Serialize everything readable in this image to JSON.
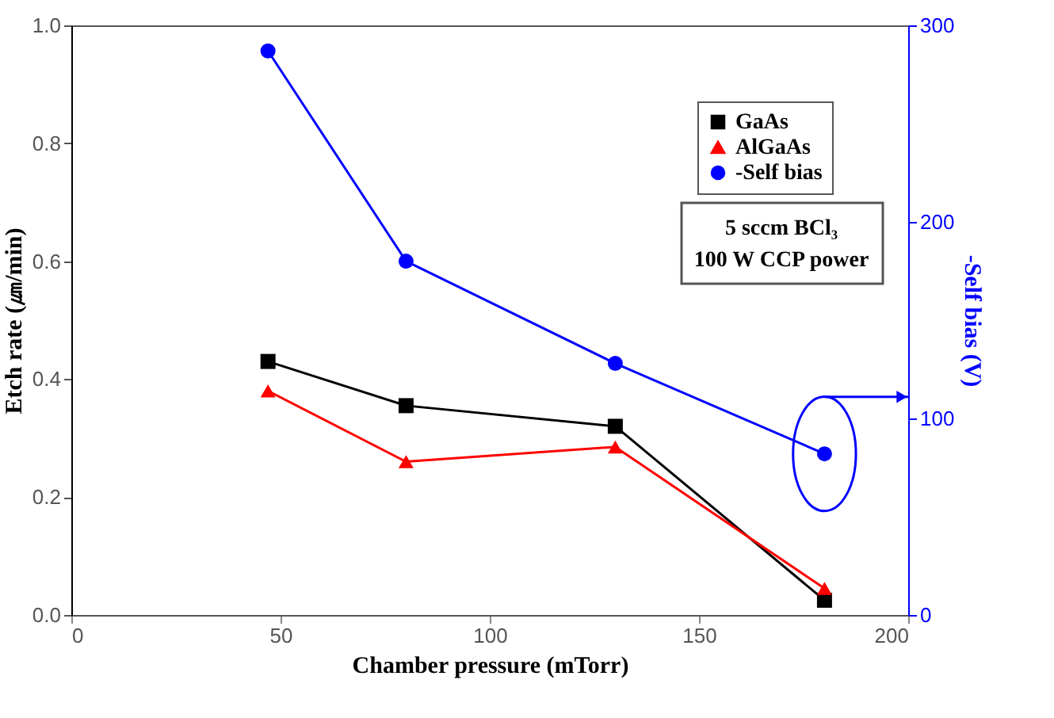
{
  "chart_data": {
    "type": "line",
    "xlabel": "Chamber pressure (mTorr)",
    "ylabel": "Etch rate (㎛/min)",
    "y2label": "-Self bias (V)",
    "x": [
      47,
      80,
      130,
      180
    ],
    "xlim": [
      0,
      200
    ],
    "xticks": [
      0,
      50,
      100,
      150,
      200
    ],
    "ylim": [
      0,
      1.0
    ],
    "yticks": [
      {
        "value": 0,
        "label": "0.0"
      },
      0.2,
      0.4,
      0.6,
      0.8,
      {
        "value": 1,
        "label": "1.0"
      }
    ],
    "y2lim": [
      0,
      300
    ],
    "y2ticks": [
      0,
      100,
      200,
      300
    ],
    "series": [
      {
        "name": "GaAs",
        "color": "#000000",
        "marker": "square",
        "values": [
          0.43,
          0.355,
          0.32,
          0.025
        ]
      },
      {
        "name": "AlGaAs",
        "color": "#ff0000",
        "marker": "triangle",
        "values": [
          0.38,
          0.26,
          0.285,
          0.045
        ]
      },
      {
        "name": "-Self bias",
        "color": "#0000ff",
        "marker": "circle",
        "axis": "y2",
        "values": [
          287,
          180,
          128,
          82
        ]
      }
    ],
    "annotations": [
      "5 sccm BCl₃\n100 W CCP power"
    ],
    "legend": "top right",
    "grid": false
  }
}
